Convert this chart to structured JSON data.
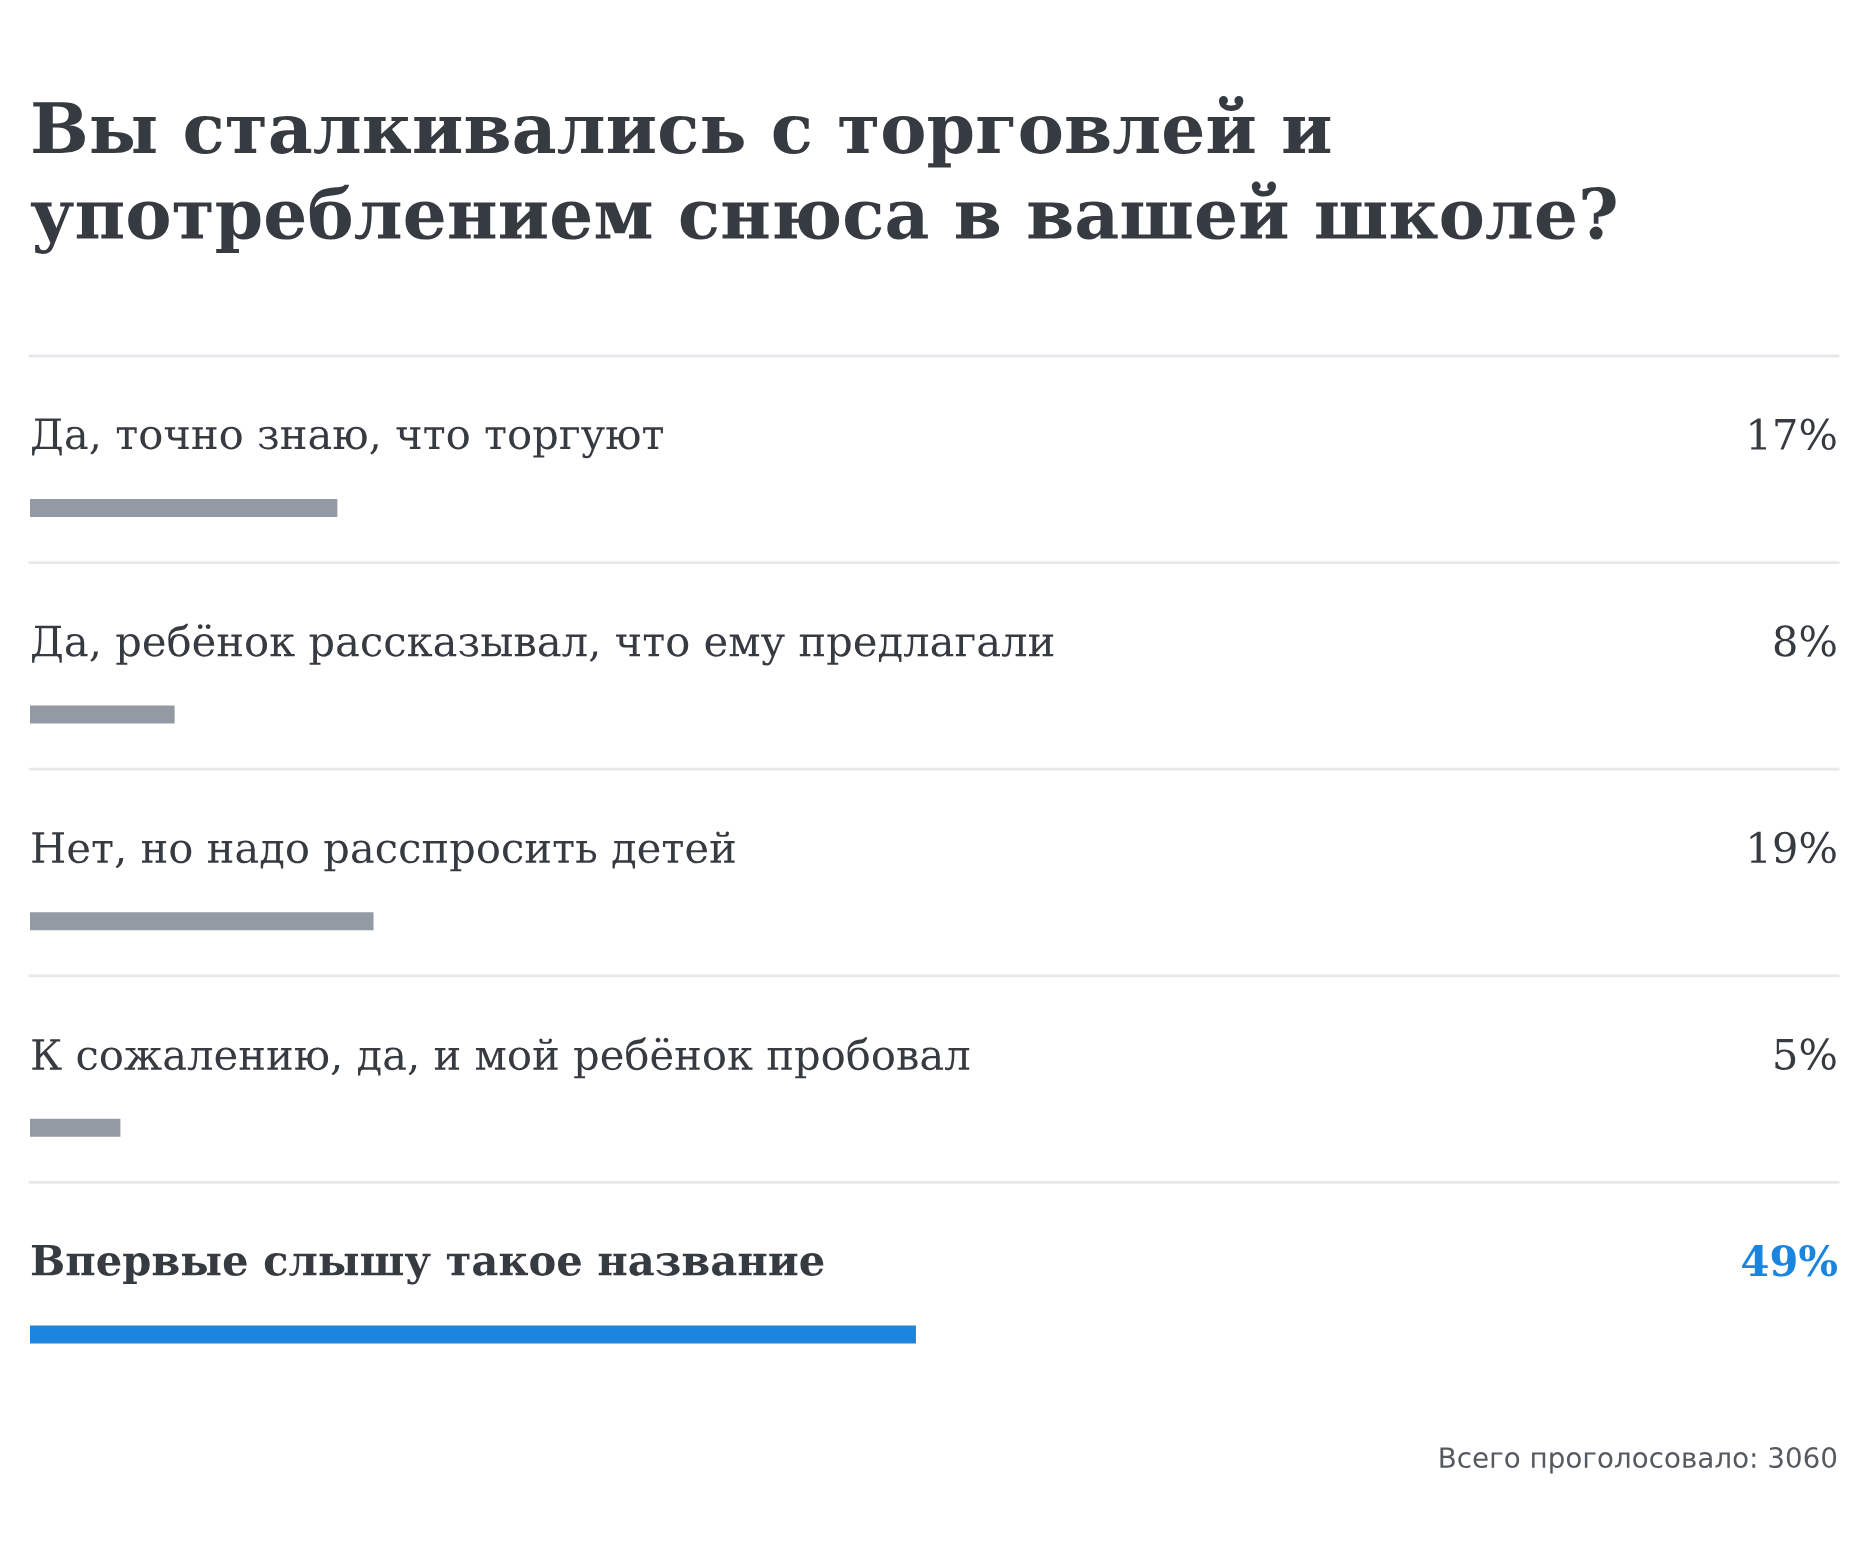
{
  "chart_data": {
    "type": "bar",
    "orientation": "horizontal",
    "title": "Вы сталкивались с торговлей и\nупотреблением снюса в вашей школе?",
    "categories": [
      "Да, точно знаю, что торгуют",
      "Да, ребёнок рассказывал, что ему предлагали",
      "Нет, но надо расспросить детей",
      "К сожалению, да, и мой ребёнок пробовал",
      "Впервые слышу такое название"
    ],
    "values": [
      17,
      8,
      19,
      5,
      49
    ],
    "value_labels": [
      "17%",
      "8%",
      "19%",
      "5%",
      "49%"
    ],
    "colors": [
      "#939aa4",
      "#939aa4",
      "#939aa4",
      "#939aa4",
      "#1a84de"
    ],
    "xlim": [
      0,
      100
    ],
    "tick_labels": false,
    "annotations": [
      "Всего проголосовало: 3060"
    ]
  }
}
